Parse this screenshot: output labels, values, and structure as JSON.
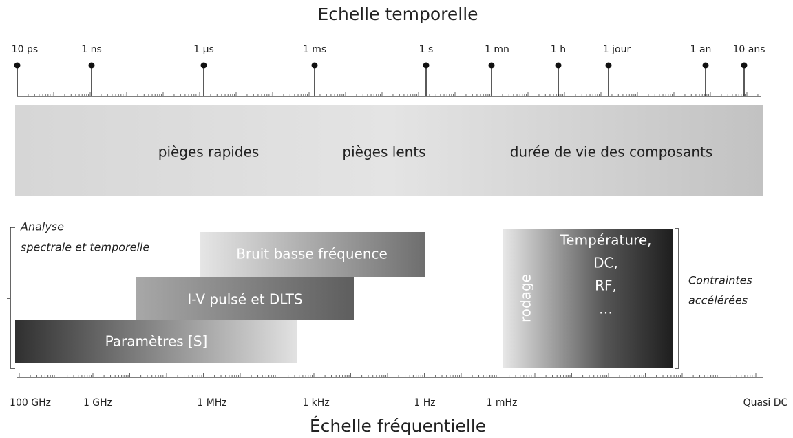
{
  "time_scale": {
    "title": "Echelle temporelle",
    "labels": [
      "10 ps",
      "1 ns",
      "1 µs",
      "1 ms",
      "1 s",
      "1 mn",
      "1 h",
      "1 jour",
      "1 an",
      "10 ans"
    ]
  },
  "band": {
    "labels": [
      "pièges rapides",
      "pièges lents",
      "durée de vie des composants"
    ]
  },
  "analysis": {
    "lines": [
      "Analyse",
      "spectrale et temporelle"
    ]
  },
  "bars": [
    "Bruit basse fréquence",
    "I-V pulsé et DLTS",
    "Paramètres [S]"
  ],
  "stress": {
    "side_label": "rodage",
    "lines": [
      "Température,",
      "DC,",
      "RF,",
      "…"
    ],
    "caption": [
      "Contraintes",
      "accélérées"
    ]
  },
  "frequency_scale": {
    "labels": [
      "100 GHz",
      "1 GHz",
      "1 MHz",
      "1 kHz",
      "1 Hz",
      "1 mHz",
      "Quasi DC"
    ],
    "title": "Échelle fréquentielle"
  }
}
